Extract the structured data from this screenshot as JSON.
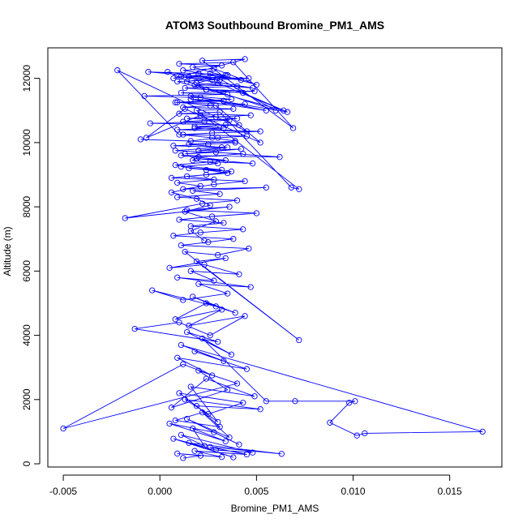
{
  "chart_data": {
    "type": "scatter",
    "title": "ATOM3 Southbound Bromine_PM1_AMS",
    "xlabel": "Bromine_PM1_AMS",
    "ylabel": "Altitude (m)",
    "xlim": [
      -0.0058,
      0.0177
    ],
    "ylim": [
      -100,
      12950
    ],
    "xticks": [
      {
        "value": -0.005,
        "label": "-0.005"
      },
      {
        "value": 0.0,
        "label": "0.000"
      },
      {
        "value": 0.005,
        "label": "0.005"
      },
      {
        "value": 0.01,
        "label": "0.010"
      },
      {
        "value": 0.015,
        "label": "0.015"
      }
    ],
    "yticks": [
      {
        "value": 0,
        "label": "0"
      },
      {
        "value": 2000,
        "label": "2000"
      },
      {
        "value": 4000,
        "label": "4000"
      },
      {
        "value": 6000,
        "label": "6000"
      },
      {
        "value": 8000,
        "label": "8000"
      },
      {
        "value": 10000,
        "label": "10000"
      },
      {
        "value": 12000,
        "label": "12000"
      }
    ],
    "grid": false,
    "series_color": "#0000ff",
    "style": "line-and-points",
    "series": [
      {
        "x": [
          0.0012,
          0.0021,
          0.0009,
          0.0032,
          0.0018,
          0.0045,
          0.0026,
          0.0063,
          0.0015,
          0.0038,
          0.0007,
          0.0029,
          0.0048,
          0.0011,
          0.0023,
          0.0017,
          0.0034,
          0.0005,
          0.0028,
          0.0041,
          0.0014,
          0.0036,
          0.0022,
          0.0008,
          0.0031,
          0.0019,
          0.0052,
          0.0013,
          0.0025,
          0.0043,
          0.001,
          0.003,
          0.0016,
          0.0049,
          0.0024,
          0.0006,
          0.0035,
          0.002,
          0.004,
          -0.005,
          0.0012,
          0.0027,
          0.0009,
          0.0045,
          0.0018,
          0.0033,
          0.0011,
          0.0167,
          0.0106,
          0.0102,
          0.0088,
          0.0098,
          0.0101,
          0.007,
          0.0055,
          0.0022,
          0.0037,
          0.0014,
          0.003,
          -0.0013,
          0.001,
          0.0026,
          0.0044,
          0.0015,
          0.0032,
          0.0008,
          0.0024,
          0.0039,
          0.0017,
          0.0029,
          -0.0004,
          0.0012,
          0.0035,
          0.002,
          0.0047,
          0.0009,
          0.0028,
          0.0016,
          0.0041,
          0.0023,
          0.0005,
          0.0034,
          0.0019,
          0.0072,
          0.0013,
          0.003,
          0.0046,
          0.0011,
          0.0025,
          0.0038,
          0.0007,
          0.0021,
          0.0043,
          0.0016,
          0.0033,
          0.001,
          0.0027,
          0.005,
          0.0014,
          0.0036,
          -0.0018,
          0.0022,
          0.004,
          0.0009,
          0.0031,
          0.0017,
          0.0055,
          0.0012,
          0.0028,
          0.0044,
          0.0006,
          0.0024,
          0.0037,
          0.0015,
          0.0032,
          0.0008,
          0.0026,
          0.0048,
          0.0019,
          0.0034,
          0.0011,
          0.0062,
          0.0029,
          0.0013,
          0.0042,
          0.002,
          0.0035,
          0.0007,
          0.0025,
          0.0039,
          -0.001,
          0.0016,
          0.003,
          0.0045,
          0.0012,
          0.0027,
          0.0052,
          0.0009,
          0.0033,
          0.0018,
          0.0041,
          -0.0005,
          0.0023,
          0.0036,
          0.0014,
          0.0029,
          0.0047,
          0.001,
          0.0031,
          0.0068,
          0.0072,
          0.0019,
          0.0038,
          0.0012,
          0.0026,
          0.0044,
          0.0008,
          0.0033,
          0.0016,
          0.0055,
          0.0021,
          -0.0008,
          0.0035,
          0.0011,
          0.0049,
          0.0024,
          0.0013,
          0.004,
          0.0018,
          0.003,
          0.0064,
          0.0009,
          0.0027,
          0.0046,
          0.0015,
          0.0034,
          0.002,
          -0.0006,
          0.0042,
          0.0012,
          0.0028,
          0.005,
          0.0017,
          0.0032,
          0.001,
          0.0038,
          0.0069,
          0.0022,
          0.0044,
          0.0007,
          0.0026,
          0.006,
          0.0014,
          0.0035,
          0.0019,
          0.0048,
          0.0011,
          0.0031,
          0.0004,
          0.0024,
          0.0043,
          0.0066,
          0.0016,
          0.0037,
          0.0009,
          0.0029,
          0.0052,
          0.0013,
          -0.0007,
          0.0021,
          0.004,
          0.0012,
          0.0034,
          0.0018,
          0.0045,
          -0.0022,
          0.001,
          0.0027,
          0.0039,
          0.0015,
          0.0032,
          0.0008,
          0.0043,
          0.002,
          0.0017,
          0.003,
          0.0011,
          0.0024,
          0.0035,
          0.0014,
          0.0028,
          0.0009,
          0.0021,
          0.0006,
          0.0019,
          0.0026,
          0.0013,
          0.0029,
          0.0016,
          0.0023
        ],
        "y": [
          180,
          250,
          320,
          210,
          400,
          290,
          520,
          310,
          650,
          200,
          780,
          430,
          350,
          900,
          560,
          1100,
          700,
          1250,
          980,
          600,
          1400,
          820,
          1600,
          1350,
          1150,
          1800,
          1700,
          2000,
          1550,
          1900,
          2200,
          1300,
          2400,
          2100,
          2650,
          1750,
          2300,
          2900,
          2500,
          1100,
          3100,
          2750,
          3300,
          2950,
          3500,
          3200,
          3700,
          1000,
          950,
          880,
          1280,
          1900,
          1950,
          1950,
          1950,
          3900,
          3400,
          4100,
          3800,
          4200,
          4400,
          4000,
          4600,
          4300,
          4800,
          4500,
          5000,
          4700,
          5200,
          4900,
          5400,
          5100,
          5300,
          5600,
          5500,
          5800,
          5700,
          6000,
          5900,
          6200,
          6100,
          6400,
          6300,
          3850,
          6600,
          6500,
          6700,
          6800,
          6900,
          7000,
          7100,
          7200,
          7300,
          7400,
          7500,
          7600,
          7700,
          7800,
          7900,
          8000,
          7650,
          8100,
          8200,
          8300,
          8400,
          8500,
          8600,
          8550,
          8700,
          8800,
          8900,
          9000,
          9100,
          9200,
          9150,
          9300,
          9400,
          9350,
          9500,
          9450,
          9600,
          9550,
          9700,
          9650,
          9800,
          9750,
          9850,
          9900,
          9950,
          10000,
          10100,
          10050,
          10150,
          10200,
          10250,
          10300,
          10350,
          10400,
          10450,
          10500,
          10550,
          10600,
          10650,
          10700,
          10750,
          10800,
          10850,
          10900,
          10950,
          8600,
          8550,
          11000,
          11050,
          11100,
          11150,
          11200,
          11250,
          11300,
          11350,
          11000,
          11400,
          11450,
          11500,
          11550,
          11600,
          11650,
          11700,
          11750,
          11800,
          11850,
          11000,
          11900,
          11950,
          12000,
          12050,
          12100,
          12150,
          12200,
          11950,
          12250,
          12300,
          11800,
          12350,
          12400,
          12450,
          12500,
          10450,
          12550,
          12600,
          12000,
          12150,
          11000,
          11900,
          12100,
          11850,
          11700,
          12050,
          11950,
          12200,
          11650,
          11550,
          10950,
          11450,
          11350,
          11250,
          11150,
          10000,
          11050,
          10150,
          10850,
          10750,
          10650,
          10550,
          10450,
          10350,
          12250,
          10250,
          10150,
          10050,
          9950,
          9850,
          9750,
          9650,
          9550,
          9450,
          9350,
          9250,
          9150,
          9050,
          8950,
          8850,
          8750,
          8650,
          8450,
          8250,
          8050,
          7850,
          7550,
          7250,
          6950
        ]
      }
    ]
  }
}
